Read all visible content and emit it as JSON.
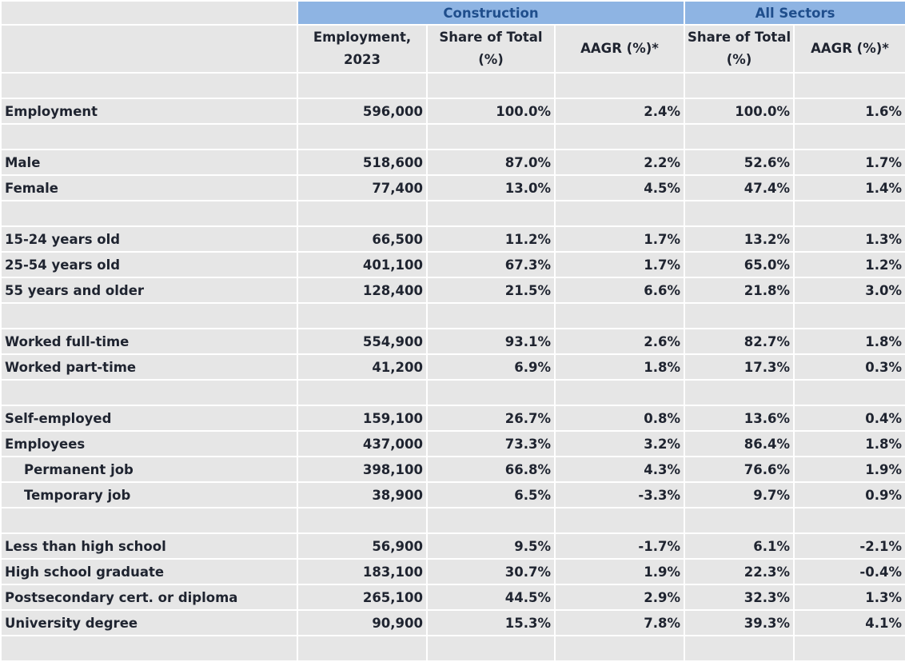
{
  "groups": {
    "construction": "Construction",
    "all_sectors": "All Sectors"
  },
  "columns": {
    "employment": "Employment, 2023",
    "construction_share": "Share of Total (%)",
    "construction_aagr": "AAGR (%)*",
    "all_share": "Share of Total (%)",
    "all_aagr": "AAGR (%)*"
  },
  "rows": [
    {
      "spacer": true
    },
    {
      "label": "Employment",
      "employment": "596,000",
      "c_share": "100.0%",
      "c_aagr": "2.4%",
      "a_share": "100.0%",
      "a_aagr": "1.6%"
    },
    {
      "spacer": true
    },
    {
      "label": "Male",
      "employment": "518,600",
      "c_share": "87.0%",
      "c_aagr": "2.2%",
      "a_share": "52.6%",
      "a_aagr": "1.7%"
    },
    {
      "label": "Female",
      "employment": "77,400",
      "c_share": "13.0%",
      "c_aagr": "4.5%",
      "a_share": "47.4%",
      "a_aagr": "1.4%"
    },
    {
      "spacer": true
    },
    {
      "label": "15-24 years old",
      "employment": "66,500",
      "c_share": "11.2%",
      "c_aagr": "1.7%",
      "a_share": "13.2%",
      "a_aagr": "1.3%"
    },
    {
      "label": "25-54 years old",
      "employment": "401,100",
      "c_share": "67.3%",
      "c_aagr": "1.7%",
      "a_share": "65.0%",
      "a_aagr": "1.2%"
    },
    {
      "label": "55 years and older",
      "employment": "128,400",
      "c_share": "21.5%",
      "c_aagr": "6.6%",
      "a_share": "21.8%",
      "a_aagr": "3.0%"
    },
    {
      "spacer": true
    },
    {
      "label": "Worked full-time",
      "employment": "554,900",
      "c_share": "93.1%",
      "c_aagr": "2.6%",
      "a_share": "82.7%",
      "a_aagr": "1.8%"
    },
    {
      "label": "Worked part-time",
      "employment": "41,200",
      "c_share": "6.9%",
      "c_aagr": "1.8%",
      "a_share": "17.3%",
      "a_aagr": "0.3%"
    },
    {
      "spacer": true
    },
    {
      "label": "Self-employed",
      "employment": "159,100",
      "c_share": "26.7%",
      "c_aagr": "0.8%",
      "a_share": "13.6%",
      "a_aagr": "0.4%"
    },
    {
      "label": "Employees",
      "employment": "437,000",
      "c_share": "73.3%",
      "c_aagr": "3.2%",
      "a_share": "86.4%",
      "a_aagr": "1.8%"
    },
    {
      "label": "Permanent job",
      "indent": true,
      "employment": "398,100",
      "c_share": "66.8%",
      "c_aagr": "4.3%",
      "a_share": "76.6%",
      "a_aagr": "1.9%"
    },
    {
      "label": "Temporary job",
      "indent": true,
      "employment": "38,900",
      "c_share": "6.5%",
      "c_aagr": "-3.3%",
      "a_share": "9.7%",
      "a_aagr": "0.9%"
    },
    {
      "spacer": true
    },
    {
      "label": "Less than high school",
      "employment": "56,900",
      "c_share": "9.5%",
      "c_aagr": "-1.7%",
      "a_share": "6.1%",
      "a_aagr": "-2.1%"
    },
    {
      "label": "High school graduate",
      "employment": "183,100",
      "c_share": "30.7%",
      "c_aagr": "1.9%",
      "a_share": "22.3%",
      "a_aagr": "-0.4%"
    },
    {
      "label": "Postsecondary cert. or diploma",
      "employment": "265,100",
      "c_share": "44.5%",
      "c_aagr": "2.9%",
      "a_share": "32.3%",
      "a_aagr": "1.3%"
    },
    {
      "label": "University degree",
      "employment": "90,900",
      "c_share": "15.3%",
      "c_aagr": "7.8%",
      "a_share": "39.3%",
      "a_aagr": "4.1%"
    },
    {
      "spacer": true
    }
  ]
}
